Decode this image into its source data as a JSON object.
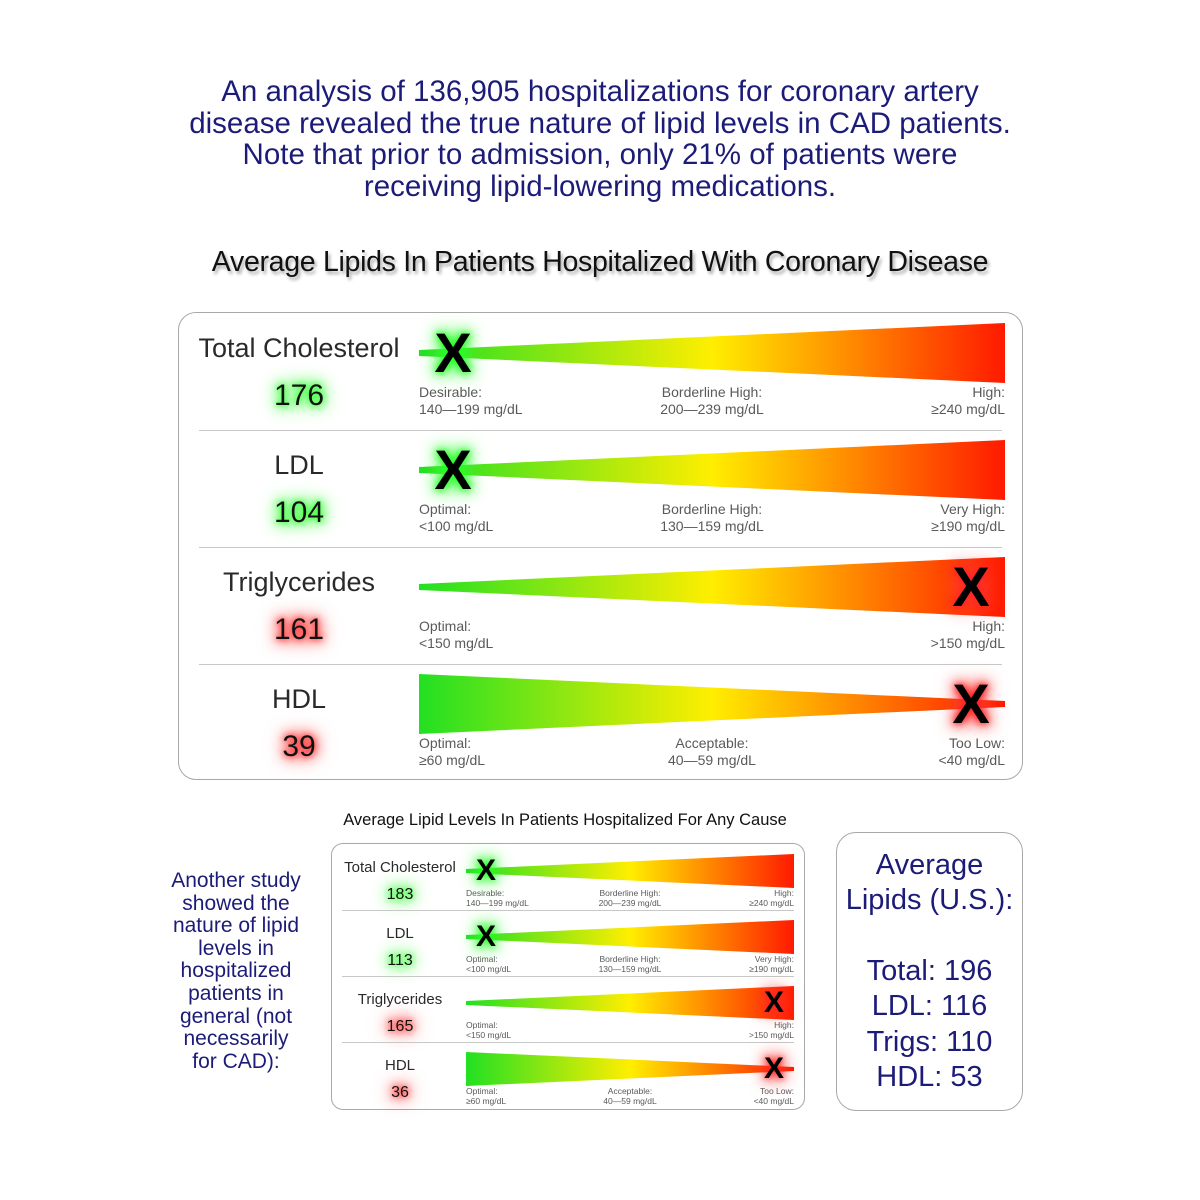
{
  "intro": {
    "lines": [
      "An analysis of 136,905 hospitalizations for coronary artery",
      "disease revealed the true nature of lipid levels in CAD patients.",
      "Note that prior to admission, only 21% of patients were",
      "receiving lipid-lowering medications."
    ]
  },
  "main_chart": {
    "title": "Average Lipids In Patients Hospitalized With Coronary Disease",
    "rows": [
      {
        "name": "Total Cholesterol",
        "value": "176",
        "status": "good",
        "mark_position": 0.0,
        "wedge": "widening",
        "zones": [
          {
            "label": "Desirable:",
            "range": "140—199 mg/dL"
          },
          {
            "label": "Borderline High:",
            "range": "200—239 mg/dL"
          },
          {
            "label": "High:",
            "range": "≥240 mg/dL"
          }
        ]
      },
      {
        "name": "LDL",
        "value": "104",
        "status": "good",
        "mark_position": 0.0,
        "wedge": "widening",
        "zones": [
          {
            "label": "Optimal:",
            "range": "<100 mg/dL"
          },
          {
            "label": "Borderline High:",
            "range": "130—159 mg/dL"
          },
          {
            "label": "Very High:",
            "range": "≥190 mg/dL"
          }
        ]
      },
      {
        "name": "Triglycerides",
        "value": "161",
        "status": "bad",
        "mark_position": 1.0,
        "wedge": "widening",
        "zones": [
          {
            "label": "Optimal:",
            "range": "<150 mg/dL"
          },
          {
            "label": "High:",
            "range": ">150 mg/dL"
          }
        ]
      },
      {
        "name": "HDL",
        "value": "39",
        "status": "bad",
        "mark_position": 1.0,
        "wedge": "narrowing",
        "zones": [
          {
            "label": "Optimal:",
            "range": "≥60 mg/dL"
          },
          {
            "label": "Acceptable:",
            "range": "40—59 mg/dL"
          },
          {
            "label": "Too Low:",
            "range": "<40 mg/dL"
          }
        ]
      }
    ]
  },
  "secondary_chart": {
    "title": "Average Lipid Levels In Patients Hospitalized For Any Cause",
    "rows": [
      {
        "name": "Total Cholesterol",
        "value": "183",
        "status": "good",
        "mark_position": 0.0,
        "wedge": "widening",
        "zones": [
          {
            "label": "Desirable:",
            "range": "140—199 mg/dL"
          },
          {
            "label": "Borderline High:",
            "range": "200—239 mg/dL"
          },
          {
            "label": "High:",
            "range": "≥240 mg/dL"
          }
        ]
      },
      {
        "name": "LDL",
        "value": "113",
        "status": "good",
        "mark_position": 0.0,
        "wedge": "widening",
        "zones": [
          {
            "label": "Optimal:",
            "range": "<100 mg/dL"
          },
          {
            "label": "Borderline High:",
            "range": "130—159 mg/dL"
          },
          {
            "label": "Very High:",
            "range": "≥190 mg/dL"
          }
        ]
      },
      {
        "name": "Triglycerides",
        "value": "165",
        "status": "bad",
        "mark_position": 1.0,
        "wedge": "widening",
        "zones": [
          {
            "label": "Optimal:",
            "range": "<150 mg/dL"
          },
          {
            "label": "High:",
            "range": ">150 mg/dL"
          }
        ]
      },
      {
        "name": "HDL",
        "value": "36",
        "status": "bad",
        "mark_position": 1.0,
        "wedge": "narrowing",
        "zones": [
          {
            "label": "Optimal:",
            "range": "≥60 mg/dL"
          },
          {
            "label": "Acceptable:",
            "range": "40—59 mg/dL"
          },
          {
            "label": "Too Low:",
            "range": "<40 mg/dL"
          }
        ]
      }
    ]
  },
  "side_note": {
    "lines": [
      "Another study",
      "showed the",
      "nature of lipid",
      "levels in",
      "hospitalized",
      "patients in",
      "general (not",
      "necessarily",
      "for CAD):"
    ]
  },
  "us_average": {
    "heading_lines": [
      "Average",
      "Lipids (U.S.):"
    ],
    "items": [
      "Total: 196",
      "LDL: 116",
      "Trigs: 110",
      "HDL: 53"
    ]
  },
  "mark_symbol": "X",
  "colors": {
    "text_blue": "#1c1c78",
    "gradient_green": "#22e022",
    "gradient_yellow": "#ffee00",
    "gradient_red": "#ff1a00",
    "glow_green": "#24ff24",
    "glow_red": "#ff2222"
  }
}
